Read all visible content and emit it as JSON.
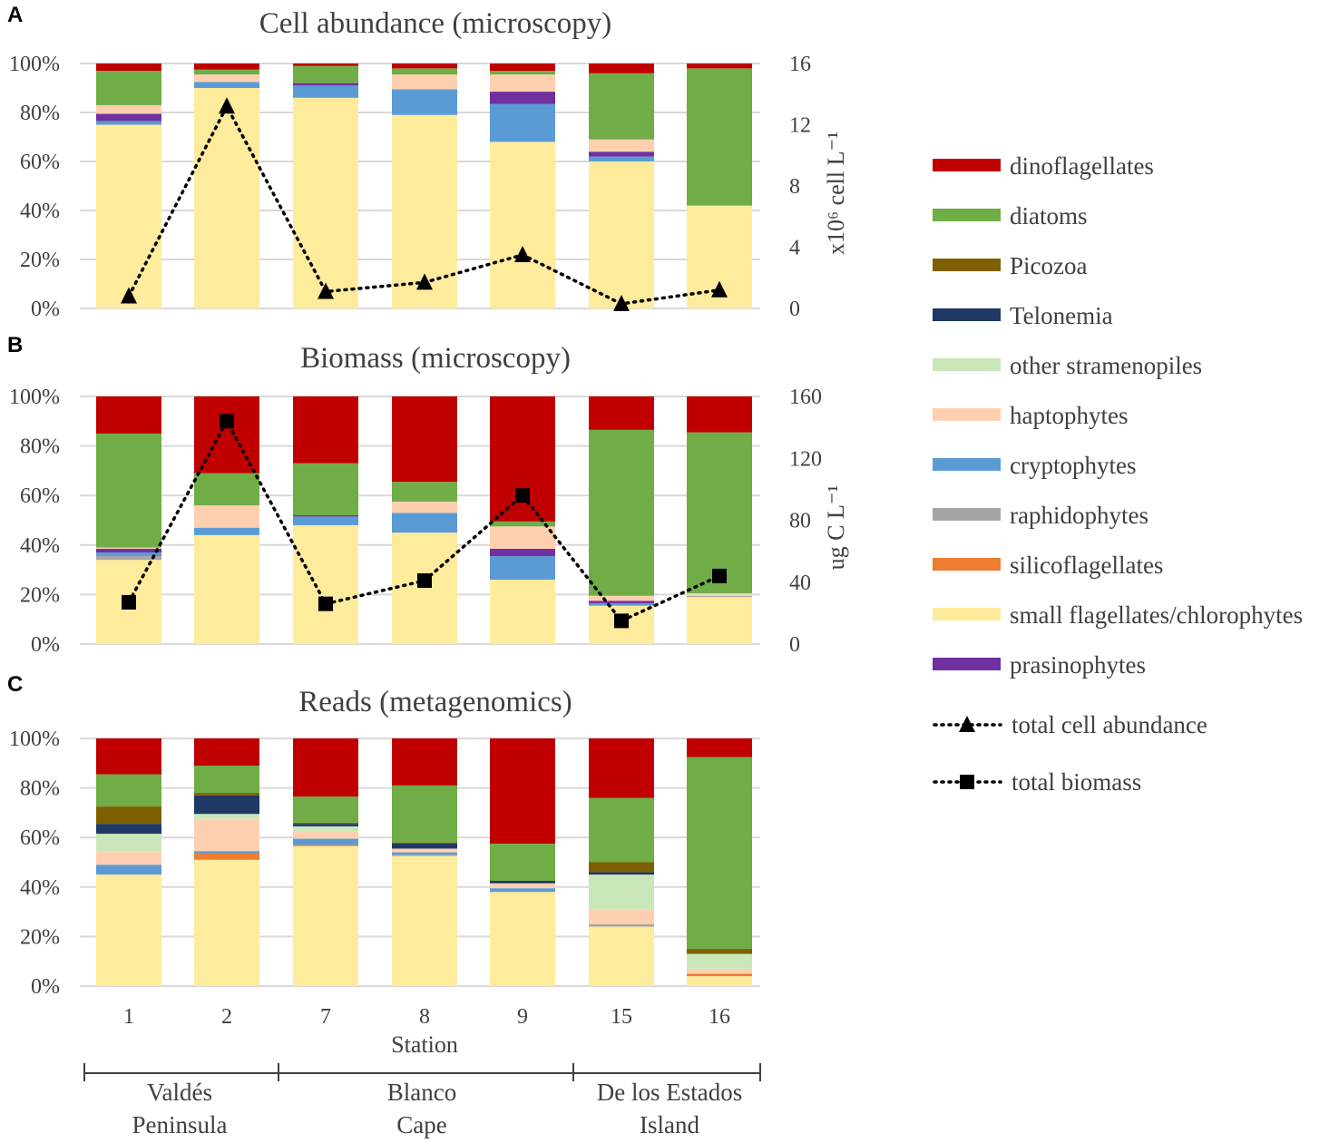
{
  "chart_data": {
    "type": "bar",
    "stacked": true,
    "categories": [
      "1",
      "2",
      "7",
      "8",
      "9",
      "15",
      "16"
    ],
    "xlabel": "Station",
    "groups": [
      {
        "label_line1": "Valdés",
        "label_line2": "Peninsula",
        "stations": [
          "1",
          "2"
        ]
      },
      {
        "label_line1": "Blanco",
        "label_line2": "Cape",
        "stations": [
          "7",
          "8",
          "9"
        ]
      },
      {
        "label_line1": "De los Estados",
        "label_line2": "Island",
        "stations": [
          "15",
          "16"
        ]
      }
    ],
    "legend": {
      "placement": "right",
      "entries": [
        {
          "key": "dino",
          "label": "dinoflagellates",
          "color": "#C00000"
        },
        {
          "key": "diatoms",
          "label": "diatoms",
          "color": "#70AD47"
        },
        {
          "key": "picozoa",
          "label": "Picozoa",
          "color": "#7F6000"
        },
        {
          "key": "telonemia",
          "label": "Telonemia",
          "color": "#1F3864"
        },
        {
          "key": "other",
          "label": "other stramenopiles",
          "color": "#C9E7B9"
        },
        {
          "key": "hapto",
          "label": "haptophytes",
          "color": "#FFD0B0"
        },
        {
          "key": "crypto",
          "label": "cryptophytes",
          "color": "#5B9BD5"
        },
        {
          "key": "raphido",
          "label": "raphidophytes",
          "color": "#A5A5A5"
        },
        {
          "key": "silico",
          "label": "silicoflagellates",
          "color": "#ED7D31"
        },
        {
          "key": "small",
          "label": "small flagellates/chlorophytes",
          "color": "#FFEB9C"
        },
        {
          "key": "prasino",
          "label": "prasinophytes",
          "color": "#7030A0"
        }
      ],
      "line_entries": [
        {
          "label": "total cell abundance",
          "marker": "triangle"
        },
        {
          "label": "total biomass",
          "marker": "square"
        }
      ]
    },
    "stack_order": [
      "small",
      "silico",
      "raphido",
      "crypto",
      "prasino",
      "hapto",
      "other",
      "telonemia",
      "picozoa",
      "diatoms",
      "dino"
    ],
    "panels": [
      {
        "letter": "A",
        "title": "Cell abundance (microscopy)",
        "ylim": [
          0,
          100
        ],
        "yticks": [
          "0%",
          "20%",
          "40%",
          "60%",
          "80%",
          "100%"
        ],
        "y2label": "x10⁶ cell L⁻¹",
        "y2lim": [
          0,
          16
        ],
        "y2ticks": [
          "0",
          "4",
          "8",
          "12",
          "16"
        ],
        "line": {
          "name": "total cell abundance",
          "marker": "triangle",
          "values": [
            0.8,
            13.2,
            1.1,
            1.7,
            3.5,
            0.3,
            1.2
          ]
        },
        "series": {
          "small": [
            75,
            90,
            86,
            79,
            68,
            60,
            42
          ],
          "silico": [
            0,
            0,
            0,
            0,
            0,
            0,
            0
          ],
          "raphido": [
            0,
            0,
            0,
            0,
            0,
            0,
            0
          ],
          "crypto": [
            1.5,
            2.5,
            5,
            10.5,
            15.5,
            2,
            0
          ],
          "prasino": [
            3,
            0,
            1,
            0,
            5,
            2,
            0
          ],
          "hapto": [
            3.5,
            3,
            0,
            6,
            7,
            5,
            0
          ],
          "other": [
            0,
            0,
            0,
            0,
            0,
            0,
            0
          ],
          "telonemia": [
            0,
            0,
            0,
            0,
            0,
            0,
            0
          ],
          "picozoa": [
            0,
            0,
            0,
            0,
            0,
            0,
            0
          ],
          "diatoms": [
            14,
            2,
            7,
            2.5,
            1.5,
            27,
            56
          ],
          "dino": [
            3,
            2.5,
            1,
            2,
            3,
            4,
            2
          ]
        }
      },
      {
        "letter": "B",
        "title": "Biomass (microscopy)",
        "ylim": [
          0,
          100
        ],
        "yticks": [
          "0%",
          "20%",
          "40%",
          "60%",
          "80%",
          "100%"
        ],
        "y2label": "ug C L⁻¹",
        "y2lim": [
          0,
          160
        ],
        "y2ticks": [
          "0",
          "40",
          "80",
          "120",
          "160"
        ],
        "line": {
          "name": "total biomass",
          "marker": "square",
          "values": [
            27,
            144,
            26,
            41,
            96,
            15,
            44
          ]
        },
        "series": {
          "small": [
            34,
            44,
            48,
            45,
            26,
            15.5,
            19
          ],
          "silico": [
            0,
            0,
            0,
            0,
            0,
            0,
            0
          ],
          "raphido": [
            1.5,
            0,
            0,
            0,
            0,
            0,
            0.5
          ],
          "crypto": [
            1.5,
            3,
            3.5,
            8,
            9.5,
            1,
            0
          ],
          "prasino": [
            1.5,
            0,
            0.5,
            0,
            3,
            1,
            0
          ],
          "hapto": [
            0.5,
            9,
            0,
            4.5,
            9,
            2,
            0.5
          ],
          "other": [
            0,
            0,
            0,
            0,
            0,
            0,
            0.5
          ],
          "telonemia": [
            0,
            0,
            0,
            0,
            0,
            0,
            0
          ],
          "picozoa": [
            0,
            0,
            0,
            0,
            0,
            0,
            0
          ],
          "diatoms": [
            46,
            13,
            21,
            8,
            2,
            67,
            65
          ],
          "dino": [
            15,
            31,
            27,
            34.5,
            50.5,
            13.5,
            14.5
          ]
        }
      },
      {
        "letter": "C",
        "title": "Reads (metagenomics)",
        "ylim": [
          0,
          100
        ],
        "yticks": [
          "0%",
          "20%",
          "40%",
          "60%",
          "80%",
          "100%"
        ],
        "series": {
          "small": [
            45,
            51,
            56.5,
            52.5,
            38,
            24,
            4
          ],
          "silico": [
            0,
            2.5,
            0.5,
            0,
            0,
            0,
            1
          ],
          "raphido": [
            0,
            0,
            0,
            0.5,
            0,
            1,
            0
          ],
          "crypto": [
            4,
            1,
            2.5,
            1,
            1.5,
            0,
            0
          ],
          "prasino": [
            0,
            0,
            0,
            0,
            0,
            0,
            0
          ],
          "hapto": [
            5.5,
            13,
            3,
            1.5,
            2,
            6,
            2
          ],
          "other": [
            7,
            2,
            2,
            0,
            0,
            14,
            6
          ],
          "telonemia": [
            4,
            7.5,
            1,
            2,
            1,
            1,
            0
          ],
          "picozoa": [
            7,
            1,
            0.5,
            0.5,
            0,
            4,
            2
          ],
          "diatoms": [
            13,
            11,
            10.5,
            23,
            15,
            26,
            77.5
          ],
          "dino": [
            14.5,
            11,
            23.5,
            19,
            42.5,
            24,
            7.5
          ]
        }
      }
    ]
  }
}
